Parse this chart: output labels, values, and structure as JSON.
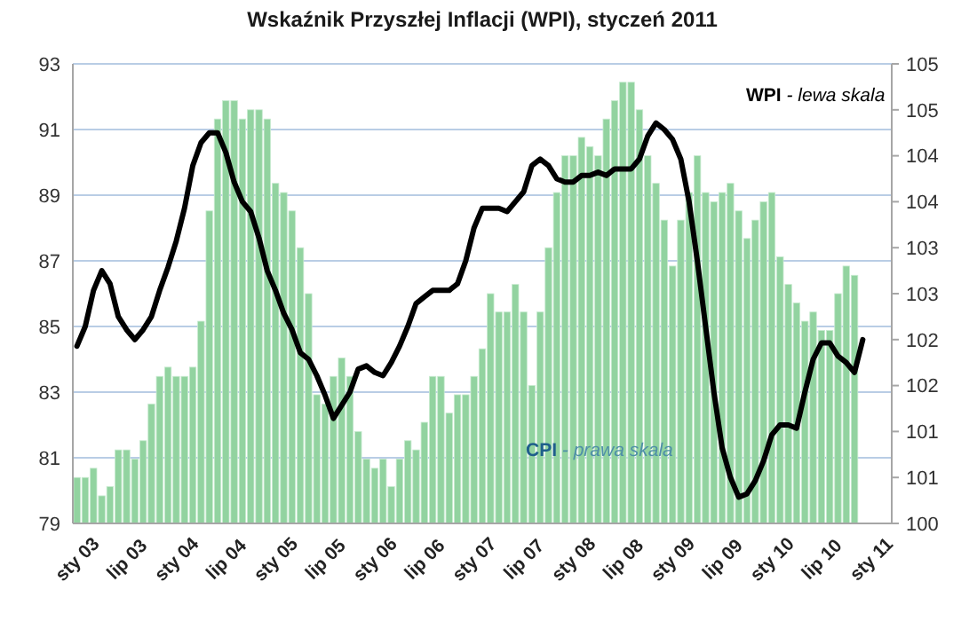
{
  "chart_data": {
    "type": "bar",
    "title": "Wskaźnik Przyszłej Inflacji (WPI), styczeń 2011",
    "categories": [
      "sty 03",
      null,
      null,
      null,
      null,
      null,
      "lip 03",
      null,
      null,
      null,
      null,
      null,
      "sty 04",
      null,
      null,
      null,
      null,
      null,
      "lip 04",
      null,
      null,
      null,
      null,
      null,
      "sty 05",
      null,
      null,
      null,
      null,
      null,
      "lip 05",
      null,
      null,
      null,
      null,
      null,
      "sty 06",
      null,
      null,
      null,
      null,
      null,
      "lip 06",
      null,
      null,
      null,
      null,
      null,
      "sty 07",
      null,
      null,
      null,
      null,
      null,
      "lip 07",
      null,
      null,
      null,
      null,
      null,
      "sty 08",
      null,
      null,
      null,
      null,
      null,
      "lip 08",
      null,
      null,
      null,
      null,
      null,
      "sty 09",
      null,
      null,
      null,
      null,
      null,
      "lip 09",
      null,
      null,
      null,
      null,
      null,
      "sty 10",
      null,
      null,
      null,
      null,
      null,
      "lip 10",
      null,
      null,
      null,
      null,
      null,
      "sty 11",
      null,
      null
    ],
    "series": [
      {
        "name": "CPI - prawa skala",
        "axis": "y2",
        "color": "#92d3a0",
        "values": [
          100.5,
          100.5,
          100.6,
          100.3,
          100.4,
          100.8,
          100.8,
          100.7,
          100.9,
          101.3,
          101.6,
          101.7,
          101.6,
          101.6,
          101.7,
          102.2,
          103.4,
          104.4,
          104.6,
          104.6,
          104.4,
          104.5,
          104.5,
          104.4,
          103.7,
          103.6,
          103.4,
          103.0,
          102.5,
          101.4,
          101.3,
          101.6,
          101.8,
          101.6,
          101.0,
          100.7,
          100.6,
          100.7,
          100.4,
          100.7,
          100.9,
          100.8,
          101.1,
          101.6,
          101.6,
          101.2,
          101.4,
          101.4,
          101.6,
          101.9,
          102.5,
          102.3,
          102.3,
          102.6,
          102.3,
          101.5,
          102.3,
          103.0,
          103.6,
          104.0,
          104.0,
          104.2,
          104.1,
          104.0,
          104.4,
          104.6,
          104.8,
          104.8,
          104.5,
          104.0,
          103.7,
          103.3,
          102.8,
          103.3,
          103.6,
          104.0,
          103.6,
          103.5,
          103.6,
          103.7,
          103.4,
          103.1,
          103.3,
          103.5,
          103.6,
          102.9,
          102.6,
          102.4,
          102.2,
          102.3,
          102.1,
          102.1,
          102.5,
          102.8,
          102.7,
          null,
          null,
          null,
          null
        ]
      },
      {
        "name": "WPI - lewa skala",
        "type": "line",
        "axis": "y",
        "color": "#000000",
        "values": [
          84.4,
          85.0,
          86.1,
          86.7,
          86.3,
          85.3,
          84.9,
          84.6,
          84.9,
          85.3,
          86.1,
          86.8,
          87.6,
          88.6,
          89.9,
          90.6,
          90.9,
          90.9,
          90.3,
          89.4,
          88.8,
          88.5,
          87.7,
          86.7,
          86.1,
          85.4,
          84.9,
          84.2,
          84.0,
          83.5,
          82.9,
          82.2,
          82.6,
          83.0,
          83.7,
          83.8,
          83.6,
          83.5,
          83.9,
          84.4,
          85.0,
          85.7,
          85.9,
          86.1,
          86.1,
          86.1,
          86.3,
          87.0,
          88.0,
          88.6,
          88.6,
          88.6,
          88.5,
          88.8,
          89.1,
          89.9,
          90.1,
          89.9,
          89.5,
          89.4,
          89.4,
          89.6,
          89.6,
          89.7,
          89.6,
          89.8,
          89.8,
          89.8,
          90.1,
          90.8,
          91.2,
          91.0,
          90.7,
          90.1,
          88.8,
          87.0,
          85.0,
          83.0,
          81.3,
          80.4,
          79.8,
          79.9,
          80.3,
          80.9,
          81.7,
          82.0,
          82.0,
          81.9,
          83.0,
          84.0,
          84.5,
          84.5,
          84.1,
          83.9,
          83.6,
          84.6,
          null,
          null,
          null
        ]
      }
    ],
    "ylim": [
      79,
      93
    ],
    "yticks": [
      79,
      81,
      83,
      85,
      87,
      89,
      91,
      93
    ],
    "y2lim": [
      100,
      105
    ],
    "y2ticks": [
      100,
      {
        "value": 100.5,
        "label": "101"
      },
      101,
      {
        "value": 101.5,
        "label": "102"
      },
      102,
      {
        "value": 102.5,
        "label": "103"
      },
      103,
      {
        "value": 103.5,
        "label": "104"
      },
      104,
      {
        "value": 104.5,
        "label": "105"
      },
      105
    ],
    "grid": "y",
    "legend": false
  }
}
